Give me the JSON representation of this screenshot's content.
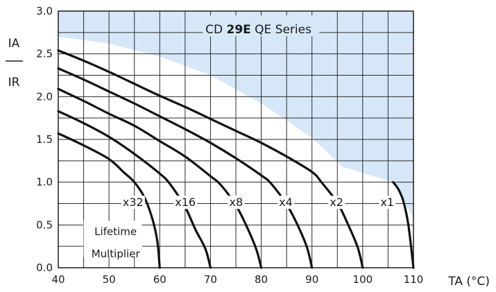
{
  "chart_data": {
    "type": "line",
    "title_prefix": "CD ",
    "title_bold": "29E",
    "title_suffix": " QE Series",
    "xlabel": "TA (°C)",
    "ylabel_top": "IA",
    "ylabel_bottom": "IR",
    "xlim": [
      40,
      110
    ],
    "ylim": [
      0.0,
      3.0
    ],
    "x_ticks": [
      "40",
      "50",
      "60",
      "70",
      "80",
      "90",
      "100",
      "110"
    ],
    "y_ticks": [
      "0.0",
      "0.5",
      "1.0",
      "1.5",
      "2.0",
      "2.5",
      "3.0"
    ],
    "grid": true,
    "annotation_line1": "Lifetime",
    "annotation_line2": "Multiplier",
    "shaded_region_color": "#d6e8f8",
    "line_color": "#111111",
    "series": [
      {
        "name": "x32",
        "points": [
          [
            40,
            1.57
          ],
          [
            45,
            1.43
          ],
          [
            50,
            1.27
          ],
          [
            53,
            1.11
          ],
          [
            55,
            1.0
          ],
          [
            57,
            0.82
          ],
          [
            58.5,
            0.58
          ],
          [
            59.5,
            0.32
          ],
          [
            60,
            0.0
          ]
        ]
      },
      {
        "name": "x16",
        "points": [
          [
            40,
            1.83
          ],
          [
            45,
            1.69
          ],
          [
            50,
            1.53
          ],
          [
            55,
            1.33
          ],
          [
            60,
            1.1
          ],
          [
            62,
            0.98
          ],
          [
            65,
            0.71
          ],
          [
            67,
            0.45
          ],
          [
            69,
            0.22
          ],
          [
            70,
            0.0
          ]
        ]
      },
      {
        "name": "x8",
        "points": [
          [
            40,
            2.09
          ],
          [
            45,
            1.95
          ],
          [
            50,
            1.8
          ],
          [
            55,
            1.66
          ],
          [
            60,
            1.48
          ],
          [
            65,
            1.3
          ],
          [
            70,
            1.07
          ],
          [
            72,
            0.97
          ],
          [
            75,
            0.73
          ],
          [
            77,
            0.5
          ],
          [
            79,
            0.22
          ],
          [
            80,
            0.0
          ]
        ]
      },
      {
        "name": "x4",
        "points": [
          [
            40,
            2.33
          ],
          [
            45,
            2.2
          ],
          [
            50,
            2.06
          ],
          [
            55,
            1.92
          ],
          [
            60,
            1.77
          ],
          [
            65,
            1.62
          ],
          [
            70,
            1.46
          ],
          [
            75,
            1.28
          ],
          [
            80,
            1.08
          ],
          [
            82,
            0.98
          ],
          [
            85,
            0.74
          ],
          [
            87,
            0.52
          ],
          [
            89,
            0.24
          ],
          [
            90,
            0.0
          ]
        ]
      },
      {
        "name": "x2",
        "points": [
          [
            40,
            2.54
          ],
          [
            45,
            2.42
          ],
          [
            50,
            2.29
          ],
          [
            55,
            2.15
          ],
          [
            60,
            2.01
          ],
          [
            65,
            1.88
          ],
          [
            70,
            1.74
          ],
          [
            75,
            1.6
          ],
          [
            80,
            1.46
          ],
          [
            85,
            1.3
          ],
          [
            90,
            1.12
          ],
          [
            92,
            0.99
          ],
          [
            95,
            0.76
          ],
          [
            97,
            0.52
          ],
          [
            99,
            0.24
          ],
          [
            100,
            0.0
          ]
        ]
      },
      {
        "name": "x1",
        "points": [
          [
            106,
            1.0
          ],
          [
            107,
            0.92
          ],
          [
            108,
            0.78
          ],
          [
            109,
            0.5
          ],
          [
            110,
            0.0
          ]
        ]
      }
    ],
    "curve_labels": [
      {
        "text": "x32",
        "x": 52.7,
        "y": 0.72
      },
      {
        "text": "x16",
        "x": 63.0,
        "y": 0.72
      },
      {
        "text": "x8",
        "x": 73.7,
        "y": 0.72
      },
      {
        "text": "x4",
        "x": 83.5,
        "y": 0.72
      },
      {
        "text": "x2",
        "x": 93.5,
        "y": 0.72
      },
      {
        "text": "x1",
        "x": 103.5,
        "y": 0.72
      }
    ]
  }
}
